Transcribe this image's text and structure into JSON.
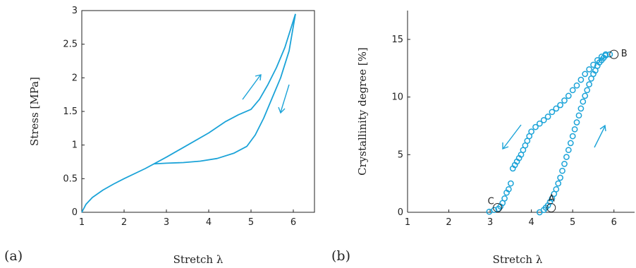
{
  "colors": {
    "series": "#1ba3d8",
    "axis": "#222222"
  },
  "chart_data": [
    {
      "type": "line",
      "panel_label": "(a)",
      "xlabel": "Stretch λ",
      "ylabel": "Stress [MPa]",
      "xlim": [
        1,
        6.5
      ],
      "ylim": [
        0,
        3
      ],
      "xticks": [
        "1",
        "2",
        "3",
        "4",
        "5",
        "6"
      ],
      "yticks": [
        "0",
        "0.5",
        "1",
        "1.5",
        "2",
        "2.5",
        "3"
      ],
      "series": [
        {
          "loading": {
            "x": [
              1.0,
              1.1,
              1.25,
              1.5,
              1.75,
              2.0,
              2.5,
              3.0,
              3.5,
              4.0,
              4.4,
              4.7,
              5.0,
              5.2,
              5.4,
              5.6,
              5.8,
              6.05
            ],
            "y": [
              0.0,
              0.12,
              0.22,
              0.33,
              0.42,
              0.5,
              0.65,
              0.82,
              1.0,
              1.18,
              1.35,
              1.45,
              1.53,
              1.68,
              1.9,
              2.15,
              2.45,
              2.95
            ]
          },
          "unloading": {
            "x": [
              6.05,
              5.9,
              5.7,
              5.5,
              5.3,
              5.1,
              4.9,
              4.6,
              4.2,
              3.8,
              3.4,
              3.0,
              2.7
            ],
            "y": [
              2.95,
              2.4,
              2.0,
              1.7,
              1.4,
              1.15,
              0.98,
              0.88,
              0.8,
              0.76,
              0.74,
              0.73,
              0.72
            ]
          }
        }
      ],
      "annotations": [
        "loading-arrow",
        "unloading-arrow"
      ]
    },
    {
      "type": "scatter",
      "panel_label": "(b)",
      "xlabel": "Stretch λ",
      "ylabel": "Crystallinity degree [%]",
      "xlim": [
        1,
        6.5
      ],
      "ylim": [
        0,
        17.5
      ],
      "xticks": [
        "1",
        "2",
        "3",
        "4",
        "5",
        "6"
      ],
      "yticks": [
        "0",
        "5",
        "10",
        "15"
      ],
      "series": [
        {
          "loading": {
            "x": [
              4.2,
              4.3,
              4.35,
              4.4,
              4.45,
              4.5,
              4.55,
              4.6,
              4.65,
              4.7,
              4.75,
              4.8,
              4.85,
              4.9,
              4.95,
              5.0,
              5.05,
              5.1,
              5.15,
              5.2,
              5.25,
              5.3,
              5.35,
              5.4,
              5.45,
              5.5,
              5.55,
              5.6,
              5.65,
              5.7,
              5.75,
              5.8,
              5.9
            ],
            "y": [
              0.0,
              0.2,
              0.4,
              0.6,
              0.9,
              1.2,
              1.6,
              2.0,
              2.5,
              3.0,
              3.6,
              4.2,
              4.8,
              5.4,
              6.0,
              6.6,
              7.2,
              7.8,
              8.4,
              9.0,
              9.6,
              10.1,
              10.6,
              11.1,
              11.6,
              12.0,
              12.3,
              12.7,
              13.0,
              13.2,
              13.4,
              13.6,
              13.7
            ]
          },
          "unloading": {
            "x": [
              5.8,
              5.7,
              5.6,
              5.5,
              5.4,
              5.3,
              5.2,
              5.1,
              5.0,
              4.9,
              4.8,
              4.7,
              4.6,
              4.5,
              4.4,
              4.3,
              4.2,
              4.1,
              4.0,
              3.95,
              3.9,
              3.85,
              3.8,
              3.75,
              3.7,
              3.65,
              3.6,
              3.55,
              3.5,
              3.45,
              3.4,
              3.35,
              3.3,
              3.25,
              3.2,
              3.1,
              2.98
            ],
            "y": [
              13.7,
              13.5,
              13.2,
              12.8,
              12.4,
              12.0,
              11.5,
              11.0,
              10.6,
              10.1,
              9.7,
              9.3,
              9.0,
              8.7,
              8.3,
              8.0,
              7.7,
              7.4,
              7.0,
              6.6,
              6.2,
              5.8,
              5.4,
              5.0,
              4.7,
              4.4,
              4.1,
              3.8,
              2.5,
              2.0,
              1.7,
              1.2,
              0.8,
              0.5,
              0.3,
              0.2,
              0.05
            ]
          }
        }
      ],
      "highlighted_points": [
        {
          "label": "A",
          "x": 4.48,
          "y": 0.4
        },
        {
          "label": "B",
          "x": 6.0,
          "y": 13.7
        },
        {
          "label": "C",
          "x": 3.18,
          "y": 0.4
        }
      ]
    }
  ]
}
